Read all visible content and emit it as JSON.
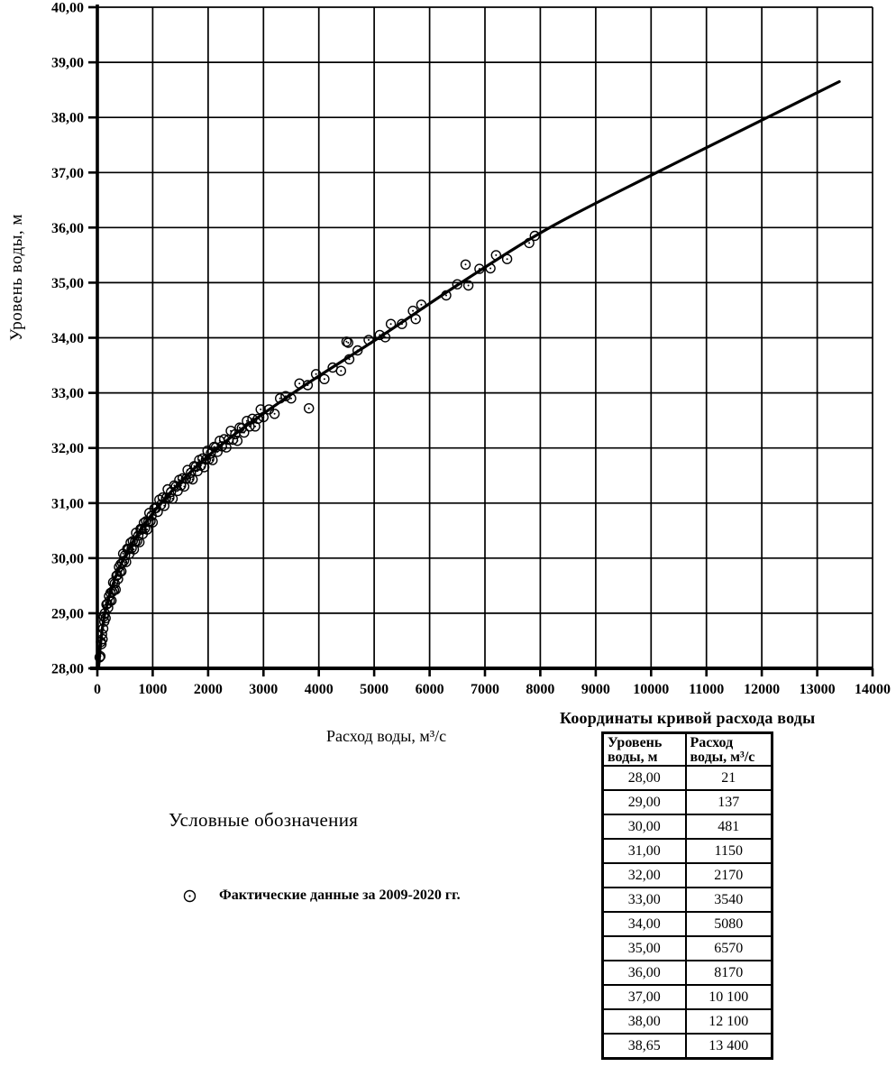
{
  "chart_data": {
    "type": "scatter",
    "title": "",
    "xlabel": "Расход воды, м³/с",
    "ylabel": "Уровень воды, м",
    "xlim": [
      0,
      14000
    ],
    "ylim": [
      28,
      40
    ],
    "grid": true,
    "x_ticks": [
      0,
      1000,
      2000,
      3000,
      4000,
      5000,
      6000,
      7000,
      8000,
      9000,
      10000,
      11000,
      12000,
      13000,
      14000
    ],
    "x_tick_labels": [
      "0",
      "1000",
      "2000",
      "3000",
      "4000",
      "5000",
      "6000",
      "7000",
      "8000",
      "9000",
      "10000",
      "11000",
      "12000",
      "13000",
      "14000"
    ],
    "y_ticks": [
      28,
      29,
      30,
      31,
      32,
      33,
      34,
      35,
      36,
      37,
      38,
      39,
      40
    ],
    "y_tick_labels": [
      "28,00",
      "29,00",
      "30,00",
      "31,00",
      "32,00",
      "33,00",
      "34,00",
      "35,00",
      "36,00",
      "37,00",
      "38,00",
      "39,00",
      "40,00"
    ],
    "series": [
      {
        "name": "Фактические данные за 2009-2020 гг.",
        "type": "scatter",
        "marker": "circle-dot",
        "points": [
          [
            40,
            28.2
          ],
          [
            55,
            28.22
          ],
          [
            65,
            28.48
          ],
          [
            75,
            28.44
          ],
          [
            85,
            28.62
          ],
          [
            95,
            28.53
          ],
          [
            105,
            28.72
          ],
          [
            115,
            28.94
          ],
          [
            125,
            28.85
          ],
          [
            135,
            29.0
          ],
          [
            150,
            28.91
          ],
          [
            165,
            29.16
          ],
          [
            180,
            29.17
          ],
          [
            195,
            29.1
          ],
          [
            210,
            29.31
          ],
          [
            225,
            29.23
          ],
          [
            240,
            29.37
          ],
          [
            255,
            29.23
          ],
          [
            270,
            29.39
          ],
          [
            285,
            29.56
          ],
          [
            300,
            29.42
          ],
          [
            315,
            29.54
          ],
          [
            330,
            29.43
          ],
          [
            345,
            29.68
          ],
          [
            360,
            29.69
          ],
          [
            375,
            29.62
          ],
          [
            390,
            29.84
          ],
          [
            405,
            29.75
          ],
          [
            420,
            29.89
          ],
          [
            435,
            29.76
          ],
          [
            450,
            29.91
          ],
          [
            465,
            30.08
          ],
          [
            480,
            29.95
          ],
          [
            500,
            30.05
          ],
          [
            520,
            29.93
          ],
          [
            540,
            30.17
          ],
          [
            560,
            30.16
          ],
          [
            580,
            30.08
          ],
          [
            600,
            30.28
          ],
          [
            620,
            30.18
          ],
          [
            640,
            30.31
          ],
          [
            660,
            30.16
          ],
          [
            680,
            30.3
          ],
          [
            700,
            30.46
          ],
          [
            720,
            30.31
          ],
          [
            740,
            30.41
          ],
          [
            760,
            30.29
          ],
          [
            780,
            30.53
          ],
          [
            800,
            30.52
          ],
          [
            820,
            30.44
          ],
          [
            840,
            30.64
          ],
          [
            860,
            30.54
          ],
          [
            880,
            30.67
          ],
          [
            900,
            30.52
          ],
          [
            920,
            30.66
          ],
          [
            940,
            30.82
          ],
          [
            960,
            30.67
          ],
          [
            980,
            30.77
          ],
          [
            1000,
            30.65
          ],
          [
            1030,
            30.9
          ],
          [
            1060,
            30.91
          ],
          [
            1090,
            30.84
          ],
          [
            1120,
            31.06
          ],
          [
            1150,
            30.97
          ],
          [
            1180,
            31.1
          ],
          [
            1210,
            30.95
          ],
          [
            1240,
            31.09
          ],
          [
            1270,
            31.25
          ],
          [
            1300,
            31.1
          ],
          [
            1330,
            31.2
          ],
          [
            1360,
            31.08
          ],
          [
            1390,
            31.32
          ],
          [
            1420,
            31.3
          ],
          [
            1450,
            31.22
          ],
          [
            1480,
            31.42
          ],
          [
            1510,
            31.32
          ],
          [
            1540,
            31.45
          ],
          [
            1570,
            31.3
          ],
          [
            1600,
            31.44
          ],
          [
            1630,
            31.6
          ],
          [
            1660,
            31.45
          ],
          [
            1690,
            31.55
          ],
          [
            1720,
            31.43
          ],
          [
            1750,
            31.67
          ],
          [
            1780,
            31.66
          ],
          [
            1810,
            31.58
          ],
          [
            1840,
            31.78
          ],
          [
            1870,
            31.68
          ],
          [
            1900,
            31.81
          ],
          [
            1930,
            31.65
          ],
          [
            1960,
            31.79
          ],
          [
            1990,
            31.95
          ],
          [
            2020,
            31.8
          ],
          [
            2050,
            31.9
          ],
          [
            2080,
            31.78
          ],
          [
            2110,
            32.02
          ],
          [
            2140,
            32.01
          ],
          [
            2170,
            31.93
          ],
          [
            2210,
            32.13
          ],
          [
            2250,
            32.03
          ],
          [
            2290,
            32.16
          ],
          [
            2330,
            32.01
          ],
          [
            2370,
            32.15
          ],
          [
            2410,
            32.31
          ],
          [
            2450,
            32.15
          ],
          [
            2490,
            32.25
          ],
          [
            2530,
            32.13
          ],
          [
            2570,
            32.37
          ],
          [
            2610,
            32.36
          ],
          [
            2650,
            32.28
          ],
          [
            2700,
            32.49
          ],
          [
            2750,
            32.39
          ],
          [
            2800,
            32.53
          ],
          [
            2850,
            32.39
          ],
          [
            2900,
            32.53
          ],
          [
            2950,
            32.7
          ],
          [
            3000,
            32.56
          ],
          [
            3100,
            32.7
          ],
          [
            3200,
            32.62
          ],
          [
            3300,
            32.9
          ],
          [
            3400,
            32.94
          ],
          [
            3500,
            32.9
          ],
          [
            3650,
            33.17
          ],
          [
            3800,
            33.14
          ],
          [
            3820,
            32.72
          ],
          [
            3950,
            33.34
          ],
          [
            4100,
            33.25
          ],
          [
            4250,
            33.46
          ],
          [
            4400,
            33.4
          ],
          [
            4500,
            33.93
          ],
          [
            4530,
            33.91
          ],
          [
            4550,
            33.61
          ],
          [
            4700,
            33.77
          ],
          [
            4900,
            33.96
          ],
          [
            5100,
            34.05
          ],
          [
            5200,
            34.01
          ],
          [
            5300,
            34.25
          ],
          [
            5500,
            34.25
          ],
          [
            5700,
            34.49
          ],
          [
            5750,
            34.34
          ],
          [
            5850,
            34.6
          ],
          [
            6300,
            34.77
          ],
          [
            6500,
            34.97
          ],
          [
            6650,
            35.33
          ],
          [
            6700,
            34.95
          ],
          [
            6900,
            35.25
          ],
          [
            7100,
            35.26
          ],
          [
            7200,
            35.5
          ],
          [
            7400,
            35.43
          ],
          [
            7800,
            35.72
          ],
          [
            7900,
            35.85
          ]
        ]
      },
      {
        "name": "Кривая расхода воды",
        "type": "line",
        "points": [
          [
            21,
            28.0
          ],
          [
            137,
            29.0
          ],
          [
            481,
            30.0
          ],
          [
            1150,
            31.0
          ],
          [
            2170,
            32.0
          ],
          [
            3540,
            33.0
          ],
          [
            5080,
            34.0
          ],
          [
            6570,
            35.0
          ],
          [
            8170,
            36.0
          ],
          [
            10100,
            37.0
          ],
          [
            12100,
            38.0
          ],
          [
            13400,
            38.65
          ]
        ]
      }
    ]
  },
  "legend": {
    "title": "Условные обозначения",
    "items": [
      {
        "marker": "circle-dot-icon",
        "label": "Фактические данные за 2009-2020 гг."
      }
    ]
  },
  "table": {
    "title": "Координаты кривой расхода воды",
    "columns": [
      {
        "line1": "Уровень",
        "line2": "воды, м"
      },
      {
        "line1": "Расход",
        "line2": "воды, м³/с"
      }
    ],
    "rows": [
      [
        "28,00",
        "21"
      ],
      [
        "29,00",
        "137"
      ],
      [
        "30,00",
        "481"
      ],
      [
        "31,00",
        "1150"
      ],
      [
        "32,00",
        "2170"
      ],
      [
        "33,00",
        "3540"
      ],
      [
        "34,00",
        "5080"
      ],
      [
        "35,00",
        "6570"
      ],
      [
        "36,00",
        "8170"
      ],
      [
        "37,00",
        "10 100"
      ],
      [
        "38,00",
        "12 100"
      ],
      [
        "38,65",
        "13 400"
      ]
    ]
  },
  "colors": {
    "ink": "#000000",
    "background": "#ffffff"
  }
}
